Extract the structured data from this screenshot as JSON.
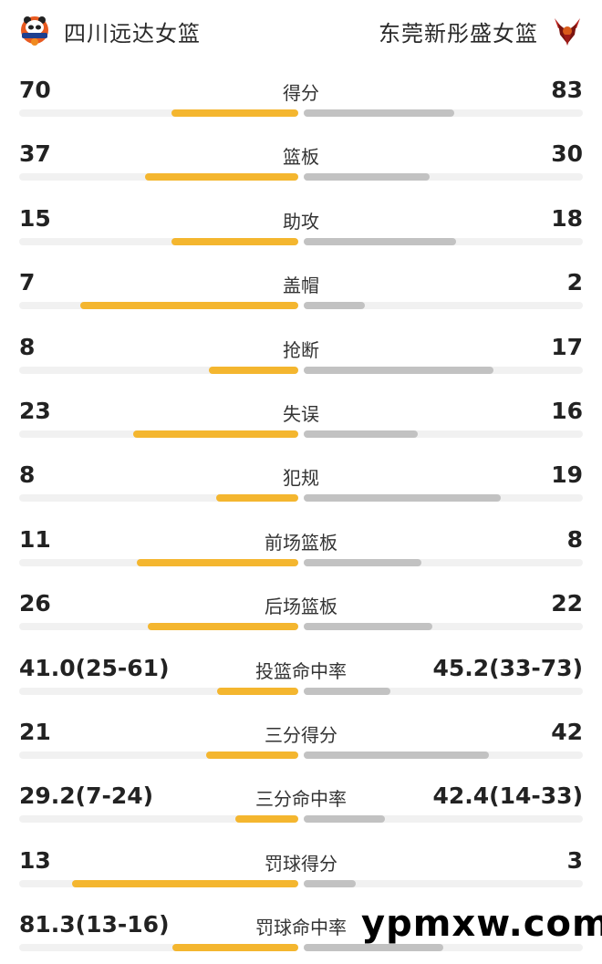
{
  "header": {
    "home_team": "四川远达女篮",
    "away_team": "东莞新彤盛女篮",
    "home_logo_icon": "sichuan-panda-logo-icon",
    "away_logo_icon": "dongguan-phoenix-logo-icon"
  },
  "colors": {
    "home_bar": "#f4b62f",
    "away_bar": "#c2c2c2",
    "track": "#f1f1f1"
  },
  "stats": [
    {
      "label": "得分",
      "home": "70",
      "away": "83",
      "home_fill": 0.455,
      "away_fill": 0.54
    },
    {
      "label": "篮板",
      "home": "37",
      "away": "30",
      "home_fill": 0.55,
      "away_fill": 0.45
    },
    {
      "label": "助攻",
      "home": "15",
      "away": "18",
      "home_fill": 0.455,
      "away_fill": 0.545
    },
    {
      "label": "盖帽",
      "home": "7",
      "away": "2",
      "home_fill": 0.78,
      "away_fill": 0.22
    },
    {
      "label": "抢断",
      "home": "8",
      "away": "17",
      "home_fill": 0.32,
      "away_fill": 0.68
    },
    {
      "label": "失误",
      "home": "23",
      "away": "16",
      "home_fill": 0.59,
      "away_fill": 0.41
    },
    {
      "label": "犯规",
      "home": "8",
      "away": "19",
      "home_fill": 0.295,
      "away_fill": 0.705
    },
    {
      "label": "前场篮板",
      "home": "11",
      "away": "8",
      "home_fill": 0.58,
      "away_fill": 0.42
    },
    {
      "label": "后场篮板",
      "home": "26",
      "away": "22",
      "home_fill": 0.54,
      "away_fill": 0.46
    },
    {
      "label": "投篮命中率",
      "home": "41.0(25-61)",
      "away": "45.2(33-73)",
      "home_fill": 0.29,
      "away_fill": 0.31
    },
    {
      "label": "三分得分",
      "home": "21",
      "away": "42",
      "home_fill": 0.33,
      "away_fill": 0.665
    },
    {
      "label": "三分命中率",
      "home": "29.2(7-24)",
      "away": "42.4(14-33)",
      "home_fill": 0.225,
      "away_fill": 0.29
    },
    {
      "label": "罚球得分",
      "home": "13",
      "away": "3",
      "home_fill": 0.81,
      "away_fill": 0.185
    },
    {
      "label": "罚球命中率",
      "home": "81.3(13-16)",
      "away": "",
      "home_fill": 0.45,
      "away_fill": 0.5
    }
  ],
  "watermark": "ypmxw.com"
}
